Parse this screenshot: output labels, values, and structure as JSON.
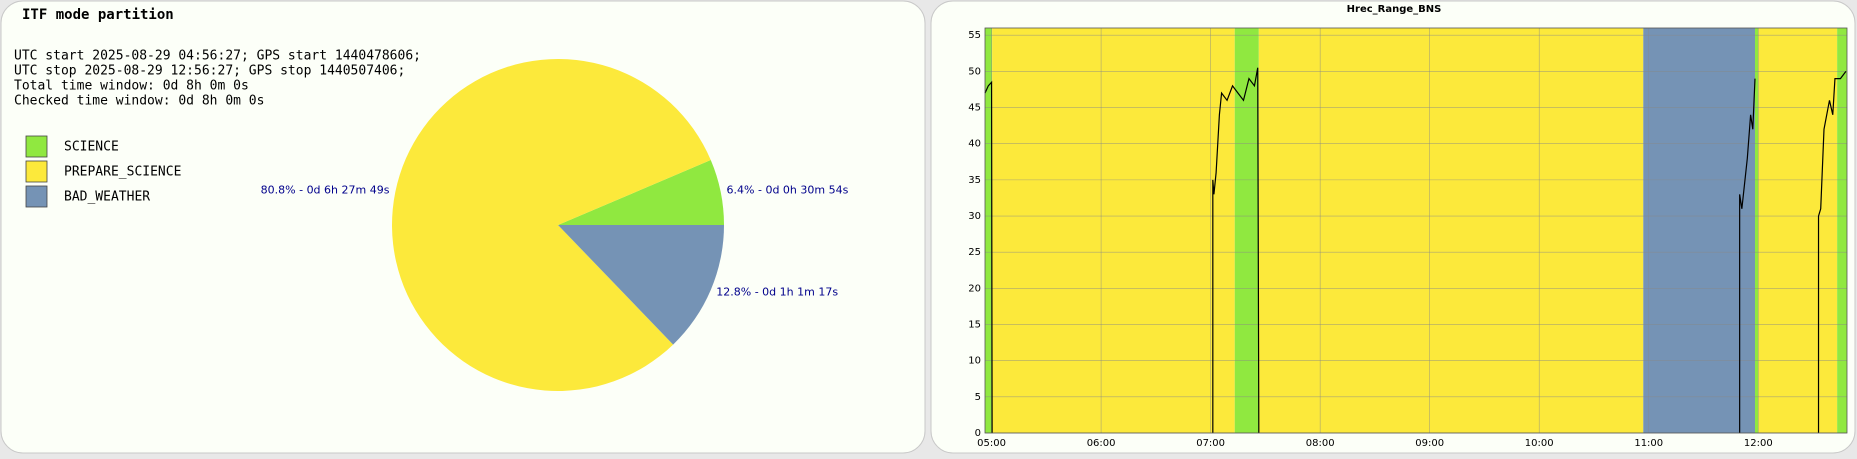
{
  "chart_data": [
    {
      "type": "pie",
      "title": "ITF mode partition",
      "info": [
        "UTC start 2025-08-29 04:56:27; GPS start 1440478606;",
        "UTC stop 2025-08-29 12:56:27; GPS stop 1440507406;",
        "Total time window: 0d 8h 0m 0s",
        "Checked time window: 0d 8h 0m 0s"
      ],
      "categories": [
        "SCIENCE",
        "PREPARE_SCIENCE",
        "BAD_WEATHER"
      ],
      "values": [
        6.4,
        80.8,
        12.8
      ],
      "value_labels": [
        "6.4% - 0d 0h 30m 54s",
        "80.8% - 0d 6h 27m 49s",
        "12.8% - 0d 1h 1m 17s"
      ],
      "colors": [
        "#90e840",
        "#fce93b",
        "#7593b5"
      ]
    },
    {
      "type": "line",
      "title": "Hrec_Range_BNS",
      "xlim": [
        4.94,
        12.81
      ],
      "ylim": [
        0,
        56
      ],
      "xticks": [
        {
          "value": 5,
          "label": "05:00"
        },
        {
          "value": 6,
          "label": "06:00"
        },
        {
          "value": 7,
          "label": "07:00"
        },
        {
          "value": 8,
          "label": "08:00"
        },
        {
          "value": 9,
          "label": "09:00"
        },
        {
          "value": 10,
          "label": "10:00"
        },
        {
          "value": 11,
          "label": "11:00"
        },
        {
          "value": 12,
          "label": "12:00"
        }
      ],
      "yticks": [
        0,
        5,
        10,
        15,
        20,
        25,
        30,
        35,
        40,
        45,
        50,
        55
      ],
      "grid": true,
      "bands": [
        {
          "start": 4.94,
          "end": 5.005,
          "color": "#90e840"
        },
        {
          "start": 5.005,
          "end": 7.22,
          "color": "#fce93b"
        },
        {
          "start": 7.22,
          "end": 7.44,
          "color": "#90e840"
        },
        {
          "start": 7.44,
          "end": 10.95,
          "color": "#fce93b"
        },
        {
          "start": 10.95,
          "end": 11.97,
          "color": "#7593b5"
        },
        {
          "start": 11.97,
          "end": 12.0,
          "color": "#90e840"
        },
        {
          "start": 12.0,
          "end": 12.72,
          "color": "#fce93b"
        },
        {
          "start": 12.72,
          "end": 12.81,
          "color": "#90e840"
        }
      ],
      "series": [
        {
          "color": "#000000",
          "x": [
            4.94,
            4.97,
            5.0,
            5.005,
            null,
            7.02,
            7.02,
            7.03,
            7.05,
            7.08,
            7.1,
            7.15,
            7.2,
            7.25,
            7.3,
            7.35,
            7.4,
            7.43,
            7.44,
            null,
            11.83,
            11.83,
            11.85,
            11.9,
            11.93,
            11.95,
            11.97,
            null,
            12.55,
            12.55,
            12.57,
            12.6,
            12.65,
            12.68,
            12.7,
            12.75,
            12.8
          ],
          "values": [
            47,
            48,
            48.5,
            0,
            null,
            0,
            35,
            33,
            36,
            44,
            47,
            46,
            48,
            47,
            46,
            49,
            48,
            50.5,
            0,
            null,
            0,
            33,
            31,
            38,
            44,
            42,
            49,
            null,
            0,
            30,
            31,
            42,
            46,
            44,
            49,
            49,
            50
          ]
        }
      ]
    }
  ]
}
